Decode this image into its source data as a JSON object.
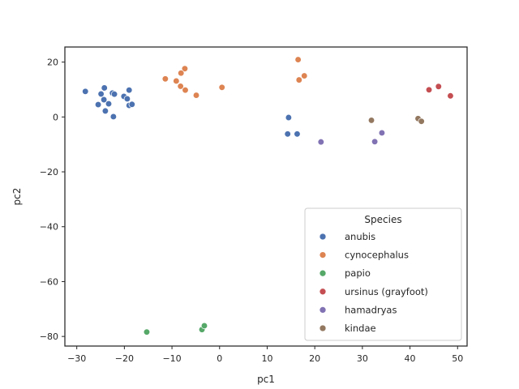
{
  "chart_data": {
    "type": "scatter",
    "xlabel": "pc1",
    "ylabel": "pc2",
    "xlim": [
      -32.5,
      52
    ],
    "ylim": [
      -83.5,
      25.5
    ],
    "xticks": [
      -30,
      -20,
      -10,
      0,
      10,
      20,
      30,
      40,
      50
    ],
    "yticks": [
      -80,
      -60,
      -40,
      -20,
      0,
      20
    ],
    "grid": false,
    "legend_position": "lower-right",
    "legend_title": "Species",
    "series": [
      {
        "name": "anubis",
        "color": "#4c72b0",
        "points": [
          [
            -28.2,
            9.3
          ],
          [
            -24.2,
            10.6
          ],
          [
            -24.9,
            8.4
          ],
          [
            -22.5,
            8.7
          ],
          [
            -22.1,
            8.3
          ],
          [
            -19.0,
            9.8
          ],
          [
            -20.1,
            7.5
          ],
          [
            -19.4,
            6.6
          ],
          [
            -24.3,
            6.3
          ],
          [
            -25.5,
            4.5
          ],
          [
            -23.3,
            4.8
          ],
          [
            -19.0,
            4.2
          ],
          [
            -18.4,
            4.6
          ],
          [
            -24.0,
            2.2
          ],
          [
            -22.3,
            0.1
          ],
          [
            14.5,
            -0.2
          ],
          [
            14.3,
            -6.2
          ],
          [
            16.3,
            -6.2
          ]
        ]
      },
      {
        "name": "cynocephalus",
        "color": "#dd8452",
        "points": [
          [
            -11.4,
            13.9
          ],
          [
            -7.3,
            17.6
          ],
          [
            -8.1,
            16.0
          ],
          [
            -9.1,
            13.1
          ],
          [
            -8.2,
            11.2
          ],
          [
            -7.2,
            9.8
          ],
          [
            -4.9,
            7.9
          ],
          [
            0.5,
            10.8
          ],
          [
            16.5,
            20.9
          ],
          [
            17.8,
            15.0
          ],
          [
            16.7,
            13.5
          ]
        ]
      },
      {
        "name": "papio",
        "color": "#55a868",
        "points": [
          [
            -15.3,
            -78.4
          ],
          [
            -3.7,
            -77.5
          ],
          [
            -3.2,
            -76.1
          ]
        ]
      },
      {
        "name": "ursinus (grayfoot)",
        "color": "#c44e52",
        "points": [
          [
            44.0,
            9.9
          ],
          [
            46.0,
            11.1
          ],
          [
            48.5,
            7.7
          ]
        ]
      },
      {
        "name": "hamadryas",
        "color": "#8172b3",
        "points": [
          [
            21.3,
            -9.1
          ],
          [
            32.6,
            -9.0
          ],
          [
            34.1,
            -5.8
          ]
        ]
      },
      {
        "name": "kindae",
        "color": "#937860",
        "points": [
          [
            31.9,
            -1.2
          ],
          [
            41.7,
            -0.6
          ],
          [
            42.4,
            -1.6
          ]
        ]
      }
    ]
  }
}
